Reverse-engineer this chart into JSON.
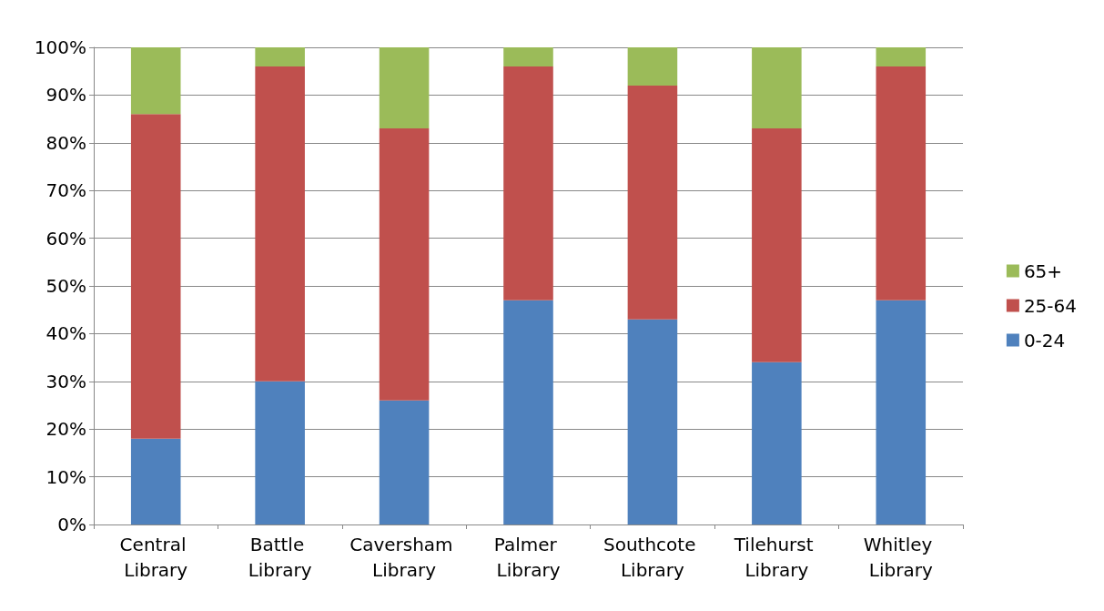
{
  "chart_data": {
    "type": "bar",
    "stacked": true,
    "categories": [
      "Central Library",
      "Battle Library",
      "Caversham Library",
      "Palmer Library",
      "Southcote Library",
      "Tilehurst Library",
      "Whitley Library"
    ],
    "series": [
      {
        "name": "0-24",
        "color": "#4f81bd",
        "values": [
          18,
          30,
          26,
          47,
          43,
          34,
          47
        ]
      },
      {
        "name": "25-64",
        "color": "#c0504d",
        "values": [
          68,
          66,
          57,
          49,
          49,
          49,
          49
        ]
      },
      {
        "name": "65+",
        "color": "#9bbb59",
        "values": [
          14,
          4,
          17,
          4,
          8,
          17,
          4
        ]
      }
    ],
    "ylim": [
      0,
      100
    ],
    "yticks": [
      {
        "value": 0,
        "label": "0%"
      },
      {
        "value": 10,
        "label": "10%"
      },
      {
        "value": 20,
        "label": "20%"
      },
      {
        "value": 30,
        "label": "30%"
      },
      {
        "value": 40,
        "label": "40%"
      },
      {
        "value": 50,
        "label": "50%"
      },
      {
        "value": 60,
        "label": "60%"
      },
      {
        "value": 70,
        "label": "70%"
      },
      {
        "value": 80,
        "label": "80%"
      },
      {
        "value": 90,
        "label": "90%"
      },
      {
        "value": 100,
        "label": "100%"
      }
    ],
    "grid": "y",
    "legend": "right"
  }
}
